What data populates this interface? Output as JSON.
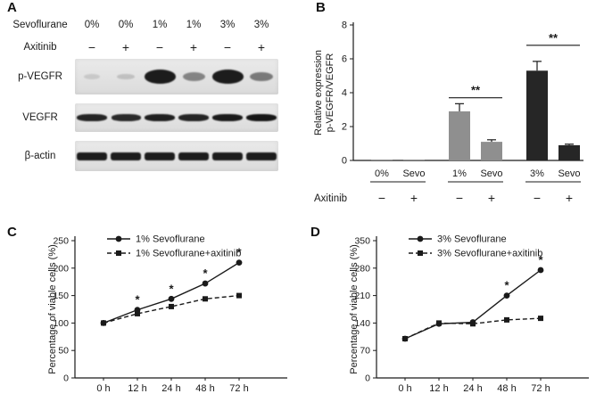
{
  "panels": {
    "a": {
      "label": "A",
      "sevoflurane_label": "Sevoflurane",
      "axitinib_label": "Axitinib",
      "sevoflurane_values": [
        "0%",
        "0%",
        "1%",
        "1%",
        "3%",
        "3%"
      ],
      "axitinib_values": [
        "−",
        "+",
        "−",
        "+",
        "−",
        "+"
      ],
      "blots": [
        {
          "label": "p-VEGFR",
          "intensities": [
            0.1,
            0.16,
            0.95,
            0.45,
            0.95,
            0.5
          ]
        },
        {
          "label": "VEGFR",
          "intensities": [
            0.8,
            0.75,
            0.85,
            0.8,
            0.9,
            0.95
          ]
        },
        {
          "label": "β-actin",
          "intensities": [
            0.95,
            0.95,
            0.95,
            0.95,
            0.95,
            0.95
          ]
        }
      ]
    },
    "b": {
      "label": "B"
    },
    "c": {
      "label": "C"
    },
    "d": {
      "label": "D"
    }
  },
  "chart_data": [
    {
      "id": "panel-b",
      "type": "bar",
      "ylabel_lines": [
        "Relative expression",
        "p-VEGFR/VEGFR"
      ],
      "ylim": [
        0,
        8
      ],
      "yticks": [
        0,
        2,
        4,
        6,
        8
      ],
      "group_labels": [
        [
          "0%",
          "Sevo"
        ],
        [
          "1%",
          "Sevo"
        ],
        [
          "3%",
          "Sevo"
        ]
      ],
      "axitinib_label": "Axitinib",
      "axitinib_signs": [
        "−",
        "+",
        "−",
        "+",
        "−",
        "+"
      ],
      "values": [
        0.05,
        0.05,
        2.9,
        1.1,
        5.3,
        0.9
      ],
      "errors": [
        0,
        0,
        0.45,
        0.12,
        0.55,
        0.06
      ],
      "bar_colors": [
        "#8f8f8f",
        "#8f8f8f",
        "#8f8f8f",
        "#8f8f8f",
        "#262626",
        "#262626"
      ],
      "significance": [
        {
          "bars": [
            2,
            3
          ],
          "y": 3.7,
          "label": "**"
        },
        {
          "bars": [
            4,
            5
          ],
          "y": 6.8,
          "label": "**"
        }
      ]
    },
    {
      "id": "panel-c",
      "type": "line",
      "ylabel": "Percentage of viable cells (%)",
      "ylim": [
        0,
        250
      ],
      "yticks": [
        0,
        50,
        100,
        150,
        200,
        250
      ],
      "x_labels": [
        "0 h",
        "12 h",
        "24 h",
        "48 h",
        "72 h"
      ],
      "series": [
        {
          "name": "1% Sevoflurane",
          "marker": "circle",
          "line": "solid",
          "values": [
            100,
            124,
            144,
            172,
            210
          ]
        },
        {
          "name": "1% Sevoflurane+axitinib",
          "marker": "square",
          "line": "dashed",
          "values": [
            100,
            117,
            130,
            144,
            150
          ]
        }
      ],
      "asterisk_points": [
        1,
        2,
        3,
        4
      ],
      "asterisk_label": "*"
    },
    {
      "id": "panel-d",
      "type": "line",
      "ylabel": "Percentage of viable cells (%)",
      "ylim": [
        0,
        350
      ],
      "yticks": [
        0,
        70,
        140,
        210,
        280,
        350
      ],
      "x_labels": [
        "0 h",
        "12 h",
        "24 h",
        "48 h",
        "72 h"
      ],
      "series": [
        {
          "name": "3% Sevoflurane",
          "marker": "circle",
          "line": "solid",
          "values": [
            100,
            138,
            142,
            210,
            275
          ]
        },
        {
          "name": "3% Sevoflurane+axitinib",
          "marker": "square",
          "line": "dashed",
          "values": [
            100,
            140,
            138,
            148,
            152
          ]
        }
      ],
      "asterisk_points": [
        3,
        4
      ],
      "asterisk_label": "*"
    }
  ],
  "colors": {
    "ink": "#1a1a1a",
    "strip_bg": "#e4e4e4",
    "band": "#121212"
  }
}
